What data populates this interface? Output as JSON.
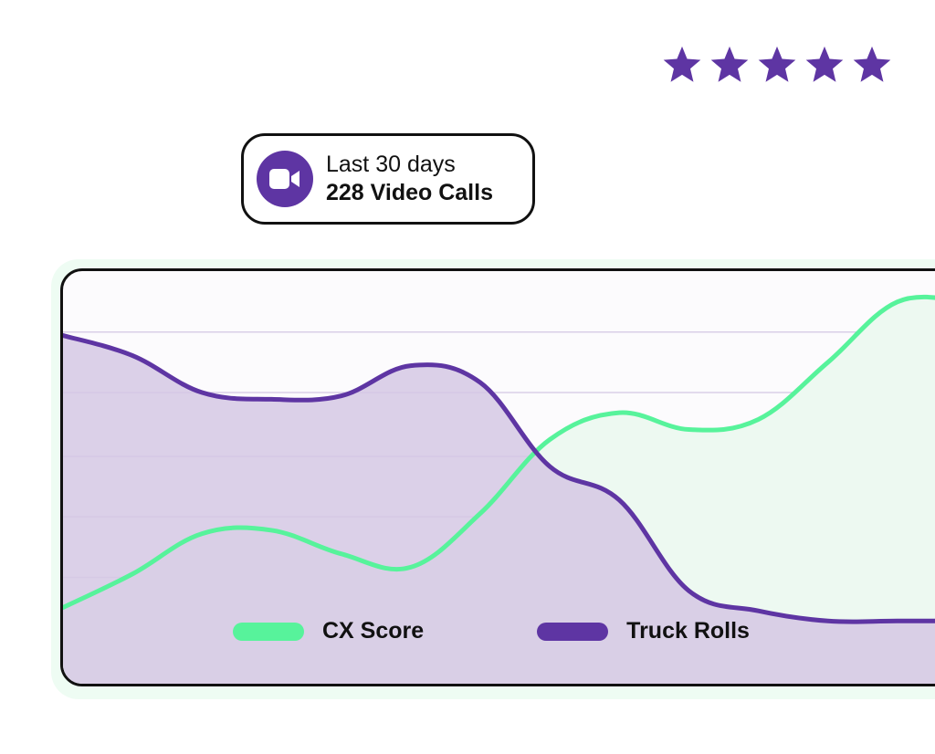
{
  "rating": {
    "value": 5,
    "max": 5,
    "color": "#5e35a3",
    "icon": "star-icon"
  },
  "summary": {
    "period": "Last 30 days",
    "count_label": "228 Video Calls",
    "icon": "video-camera-icon",
    "icon_bg": "#5e35a3"
  },
  "chart_data": {
    "type": "area",
    "x": [
      0,
      1,
      2,
      3,
      4,
      5,
      6,
      7,
      8,
      9,
      10,
      11,
      12,
      13
    ],
    "ylim": [
      0,
      100
    ],
    "grid": true,
    "legend_position": "bottom",
    "series": [
      {
        "name": "CX Score",
        "color": "#57f39b",
        "fill": "#edf9f1",
        "values": [
          8,
          18,
          30,
          31,
          24,
          20,
          36,
          58,
          66,
          61,
          64,
          81,
          99,
          99
        ]
      },
      {
        "name": "Truck Rolls",
        "color": "#5e35a3",
        "fill": "#d5c8e4",
        "values": [
          89,
          83,
          72,
          70,
          71,
          80,
          75,
          50,
          40,
          13,
          7,
          4,
          4,
          4
        ]
      }
    ]
  }
}
